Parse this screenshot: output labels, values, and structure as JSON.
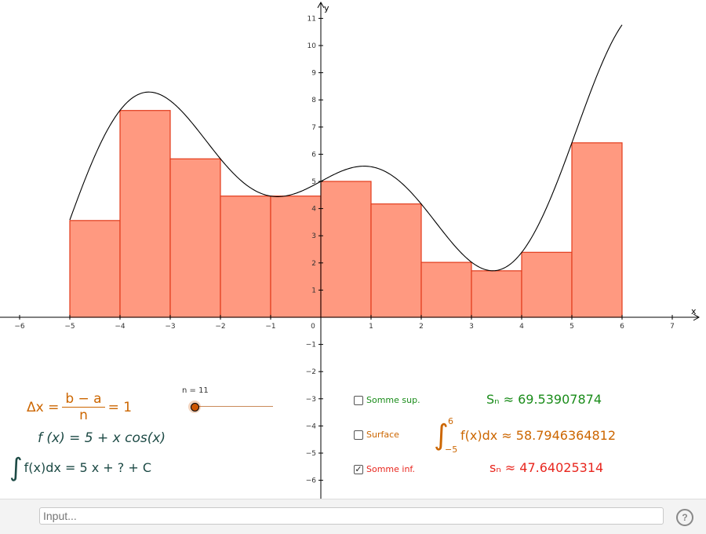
{
  "colors": {
    "bar_fill": "#ff9980",
    "bar_stroke": "#e23b1b",
    "curve": "#000000",
    "axis": "#000000",
    "orange": "#cc6600",
    "teal": "#1d4a45",
    "green": "#1a8c1a",
    "red": "#e8261e",
    "slider_point": "#cc5500"
  },
  "axes": {
    "x_label": "x",
    "y_label": "y",
    "x_ticks": [
      {
        "v": -6,
        "label": "−6"
      },
      {
        "v": -5,
        "label": "−5"
      },
      {
        "v": -4,
        "label": "−4"
      },
      {
        "v": -3,
        "label": "−3"
      },
      {
        "v": -2,
        "label": "−2"
      },
      {
        "v": -1,
        "label": "−1"
      },
      {
        "v": 0,
        "label": "0"
      },
      {
        "v": 1,
        "label": "1"
      },
      {
        "v": 2,
        "label": "2"
      },
      {
        "v": 3,
        "label": "3"
      },
      {
        "v": 4,
        "label": "4"
      },
      {
        "v": 5,
        "label": "5"
      },
      {
        "v": 6,
        "label": "6"
      },
      {
        "v": 7,
        "label": "7"
      }
    ],
    "y_ticks": [
      {
        "v": 11,
        "label": "11"
      },
      {
        "v": 10,
        "label": "10"
      },
      {
        "v": 9,
        "label": "9"
      },
      {
        "v": 8,
        "label": "8"
      },
      {
        "v": 7,
        "label": "7"
      },
      {
        "v": 6,
        "label": "6"
      },
      {
        "v": 5,
        "label": "5"
      },
      {
        "v": 4,
        "label": "4"
      },
      {
        "v": 3,
        "label": "3"
      },
      {
        "v": 2,
        "label": "2"
      },
      {
        "v": 1,
        "label": "1"
      },
      {
        "v": -1,
        "label": "−1"
      },
      {
        "v": -2,
        "label": "−2"
      },
      {
        "v": -3,
        "label": "−3"
      },
      {
        "v": -4,
        "label": "−4"
      },
      {
        "v": -5,
        "label": "−5"
      },
      {
        "v": -6,
        "label": "−6"
      }
    ]
  },
  "chart_data": {
    "type": "bar",
    "x_range": [
      -6.2,
      7.5
    ],
    "y_range": [
      -6.5,
      11.5
    ],
    "curve": {
      "a": -5,
      "b": 6
    },
    "bars": [
      {
        "x0": -5,
        "x1": -4,
        "h": 3.56
      },
      {
        "x0": -4,
        "x1": -3,
        "h": 7.61
      },
      {
        "x0": -3,
        "x1": -2,
        "h": 5.83
      },
      {
        "x0": -2,
        "x1": -1,
        "h": 4.46
      },
      {
        "x0": -1,
        "x1": 0,
        "h": 4.46
      },
      {
        "x0": 0,
        "x1": 1,
        "h": 5.0
      },
      {
        "x0": 1,
        "x1": 2,
        "h": 4.17
      },
      {
        "x0": 2,
        "x1": 3,
        "h": 2.02
      },
      {
        "x0": 3,
        "x1": 4,
        "h": 1.71
      },
      {
        "x0": 4,
        "x1": 5,
        "h": 2.39
      },
      {
        "x0": 5,
        "x1": 6,
        "h": 6.42
      }
    ]
  },
  "formulas": {
    "delta_x_lhs": "Δx =",
    "frac_num": "b − a",
    "frac_den": "n",
    "delta_x_rhs": "= 1",
    "function_def": "f (x) = 5 + x cos(x)",
    "integral_sign": "∫",
    "antiderivative": "f(x)dx = 5 x + ? + C"
  },
  "slider": {
    "label": "n = 11",
    "value": 11
  },
  "checkboxes": [
    {
      "label": "Somme sup.",
      "checked": false,
      "mark": ""
    },
    {
      "label": "Surface",
      "checked": false,
      "mark": ""
    },
    {
      "label": "Somme inf.",
      "checked": true,
      "mark": "✓"
    }
  ],
  "results": {
    "upper_sum": "Sₙ ≈ 69.53907874",
    "integral_sign": "∫",
    "integral_upper": "6",
    "integral_lower": "−5",
    "integral_value": "f(x)dx ≈ 58.7946364812",
    "lower_sum": "sₙ ≈ 47.64025314"
  },
  "input": {
    "placeholder": "Input..."
  },
  "help": {
    "icon": "help-icon",
    "glyph": "?"
  }
}
